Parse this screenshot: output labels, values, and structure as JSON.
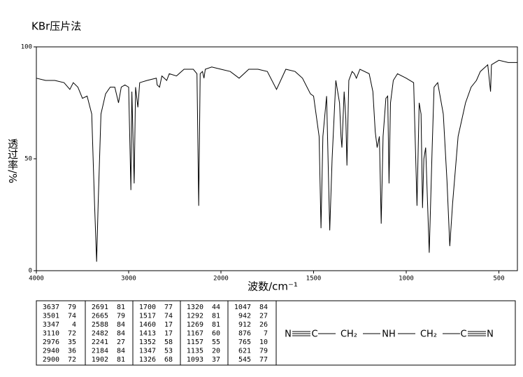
{
  "chart_data": {
    "type": "line",
    "title": "KBr压片法",
    "x_label": "波数/cm⁻¹",
    "y_label": "透过率/%",
    "xlim": [
      4000,
      400
    ],
    "x_scale_change": 2000,
    "ylim": [
      0,
      100
    ],
    "xticks": [
      4000,
      3000,
      2000,
      1500,
      1000,
      500
    ],
    "yticks": [
      0,
      50,
      100
    ],
    "color": "#000000",
    "x": [
      4000,
      3900,
      3800,
      3700,
      3637,
      3600,
      3550,
      3501,
      3450,
      3400,
      3370,
      3347,
      3330,
      3300,
      3250,
      3200,
      3150,
      3110,
      3080,
      3040,
      3000,
      2976,
      2965,
      2940,
      2925,
      2900,
      2880,
      2800,
      2700,
      2691,
      2665,
      2640,
      2588,
      2560,
      2482,
      2400,
      2300,
      2260,
      2241,
      2225,
      2200,
      2184,
      2170,
      2100,
      2000,
      1950,
      1902,
      1850,
      1800,
      1750,
      1700,
      1650,
      1600,
      1560,
      1517,
      1500,
      1470,
      1460,
      1450,
      1430,
      1413,
      1400,
      1380,
      1360,
      1352,
      1347,
      1335,
      1326,
      1320,
      1310,
      1292,
      1280,
      1269,
      1250,
      1200,
      1180,
      1167,
      1157,
      1145,
      1135,
      1125,
      1110,
      1100,
      1093,
      1085,
      1070,
      1047,
      1000,
      960,
      942,
      930,
      920,
      912,
      905,
      895,
      876,
      860,
      850,
      830,
      800,
      780,
      765,
      750,
      720,
      680,
      650,
      621,
      600,
      560,
      545,
      540,
      500,
      450,
      400
    ],
    "values": [
      86,
      85,
      85,
      84,
      81,
      84,
      82,
      77,
      78,
      70,
      30,
      4,
      30,
      70,
      79,
      82,
      82,
      75,
      82,
      83,
      82,
      36,
      80,
      39,
      82,
      73,
      84,
      85,
      86,
      83,
      82,
      87,
      85,
      88,
      87,
      90,
      90,
      88,
      29,
      88,
      89,
      86,
      90,
      91,
      90,
      89,
      86,
      90,
      90,
      89,
      81,
      90,
      89,
      86,
      79,
      78,
      60,
      19,
      60,
      78,
      18,
      50,
      85,
      75,
      60,
      55,
      80,
      68,
      47,
      85,
      89,
      88,
      86,
      90,
      88,
      80,
      62,
      55,
      60,
      21,
      60,
      77,
      78,
      39,
      75,
      85,
      88,
      86,
      84,
      29,
      75,
      70,
      28,
      50,
      55,
      8,
      55,
      82,
      84,
      70,
      40,
      11,
      30,
      60,
      75,
      82,
      85,
      89,
      92,
      80,
      92,
      94,
      93,
      93
    ]
  },
  "peak_table": [
    [
      [
        3637,
        79
      ],
      [
        3501,
        74
      ],
      [
        3347,
        4
      ],
      [
        3110,
        72
      ],
      [
        2976,
        35
      ],
      [
        2940,
        36
      ],
      [
        2900,
        72
      ]
    ],
    [
      [
        2691,
        81
      ],
      [
        2665,
        79
      ],
      [
        2588,
        84
      ],
      [
        2482,
        84
      ],
      [
        2241,
        27
      ],
      [
        2184,
        84
      ],
      [
        1902,
        81
      ]
    ],
    [
      [
        1700,
        77
      ],
      [
        1517,
        74
      ],
      [
        1460,
        17
      ],
      [
        1413,
        17
      ],
      [
        1352,
        58
      ],
      [
        1347,
        53
      ],
      [
        1326,
        68
      ]
    ],
    [
      [
        1320,
        44
      ],
      [
        1292,
        81
      ],
      [
        1269,
        81
      ],
      [
        1167,
        60
      ],
      [
        1157,
        55
      ],
      [
        1135,
        20
      ],
      [
        1093,
        37
      ]
    ],
    [
      [
        1047,
        84
      ],
      [
        942,
        27
      ],
      [
        912,
        26
      ],
      [
        876,
        7
      ],
      [
        765,
        10
      ],
      [
        621,
        79
      ],
      [
        545,
        77
      ]
    ]
  ],
  "structure": [
    "N",
    "C",
    "CH₂",
    "NH",
    "CH₂",
    "C",
    "N"
  ]
}
